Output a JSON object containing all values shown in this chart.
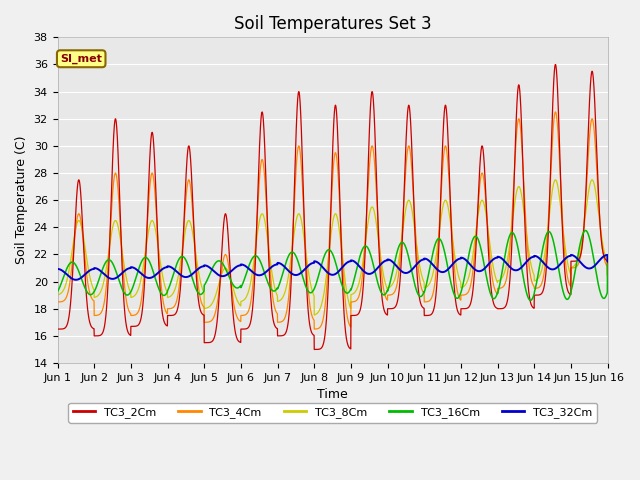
{
  "title": "Soil Temperatures Set 3",
  "xlabel": "Time",
  "ylabel": "Soil Temperature (C)",
  "ylim": [
    14,
    38
  ],
  "xlim": [
    0,
    15
  ],
  "xtick_labels": [
    "Jun 1",
    "Jun 2",
    "Jun 3",
    "Jun 4",
    "Jun 5",
    "Jun 6",
    "Jun 7",
    "Jun 8",
    "Jun 9",
    "Jun 10",
    "Jun 11",
    "Jun 12",
    "Jun 13",
    "Jun 14",
    "Jun 15",
    "Jun 16"
  ],
  "xtick_positions": [
    0,
    1,
    2,
    3,
    4,
    5,
    6,
    7,
    8,
    9,
    10,
    11,
    12,
    13,
    14,
    15
  ],
  "ytick_positions": [
    14,
    16,
    18,
    20,
    22,
    24,
    26,
    28,
    30,
    32,
    34,
    36,
    38
  ],
  "line_colors": {
    "TC3_2Cm": "#cc0000",
    "TC3_4Cm": "#ff8800",
    "TC3_8Cm": "#cccc00",
    "TC3_16Cm": "#00bb00",
    "TC3_32Cm": "#0000cc"
  },
  "si_met_label": "SI_met",
  "plot_bg_color": "#e8e8e8",
  "fig_bg_color": "#f0f0f0",
  "title_fontsize": 12,
  "axis_label_fontsize": 9,
  "tick_fontsize": 8
}
